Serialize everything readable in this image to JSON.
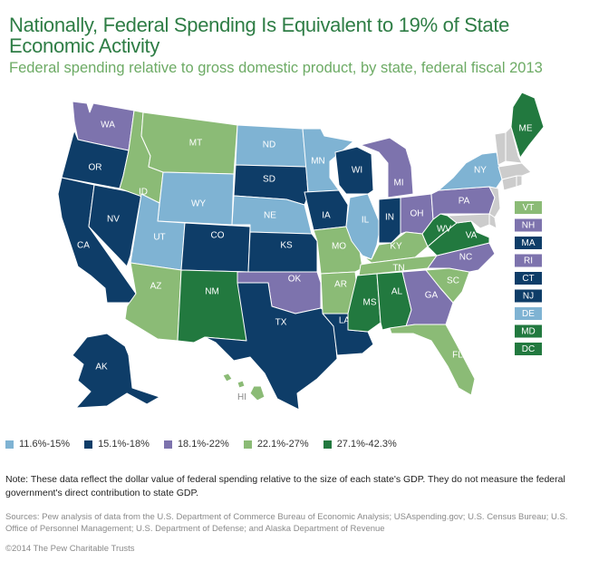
{
  "title": "Nationally, Federal Spending Is Equivalent to 19% of State Economic Activity",
  "subtitle": "Federal spending relative to gross domestic product, by state, federal fiscal 2013",
  "colors": {
    "c1": "#7fb3d3",
    "c2": "#0e3d68",
    "c3": "#7d73ad",
    "c4": "#8bbb76",
    "c5": "#22793f"
  },
  "legend": [
    {
      "color_key": "c1",
      "label": "11.6%-15%"
    },
    {
      "color_key": "c2",
      "label": "15.1%-18%"
    },
    {
      "color_key": "c3",
      "label": "18.1%-22%"
    },
    {
      "color_key": "c4",
      "label": "22.1%-27%"
    },
    {
      "color_key": "c5",
      "label": "27.1%-42.3%"
    }
  ],
  "states": {
    "WA": "c3",
    "OR": "c2",
    "CA": "c2",
    "NV": "c2",
    "ID": "c4",
    "MT": "c4",
    "WY": "c1",
    "UT": "c1",
    "AZ": "c4",
    "CO": "c2",
    "NM": "c5",
    "ND": "c1",
    "SD": "c2",
    "NE": "c1",
    "KS": "c2",
    "OK": "c3",
    "TX": "c2",
    "MN": "c1",
    "IA": "c2",
    "MO": "c4",
    "AR": "c4",
    "LA": "c2",
    "WI": "c2",
    "IL": "c1",
    "MI": "c3",
    "IN": "c2",
    "OH": "c3",
    "KY": "c4",
    "TN": "c4",
    "MS": "c5",
    "AL": "c5",
    "GA": "c3",
    "FL": "c4",
    "SC": "c4",
    "NC": "c3",
    "VA": "c5",
    "WV": "c5",
    "PA": "c3",
    "NY": "c1",
    "ME": "c5",
    "AK": "c2",
    "HI": "c4"
  },
  "small_states": [
    {
      "abbr": "VT",
      "color_key": "c4"
    },
    {
      "abbr": "NH",
      "color_key": "c3"
    },
    {
      "abbr": "MA",
      "color_key": "c2"
    },
    {
      "abbr": "RI",
      "color_key": "c3"
    },
    {
      "abbr": "CT",
      "color_key": "c2"
    },
    {
      "abbr": "NJ",
      "color_key": "c2"
    },
    {
      "abbr": "DE",
      "color_key": "c1"
    },
    {
      "abbr": "MD",
      "color_key": "c5"
    },
    {
      "abbr": "DC",
      "color_key": "c5"
    }
  ],
  "note": "Note: These data reflect the dollar value of federal spending relative to the size of each state's GDP. They do not measure the federal government's direct contribution to state GDP.",
  "sources": "Sources: Pew analysis of data from the U.S. Department of Commerce Bureau of Economic Analysis; USAspending.gov; U.S. Census Bureau; U.S. Office of Personnel Management; U.S. Department of Defense; and Alaska Department of Revenue",
  "copyright": "©2014 The Pew Charitable Trusts"
}
